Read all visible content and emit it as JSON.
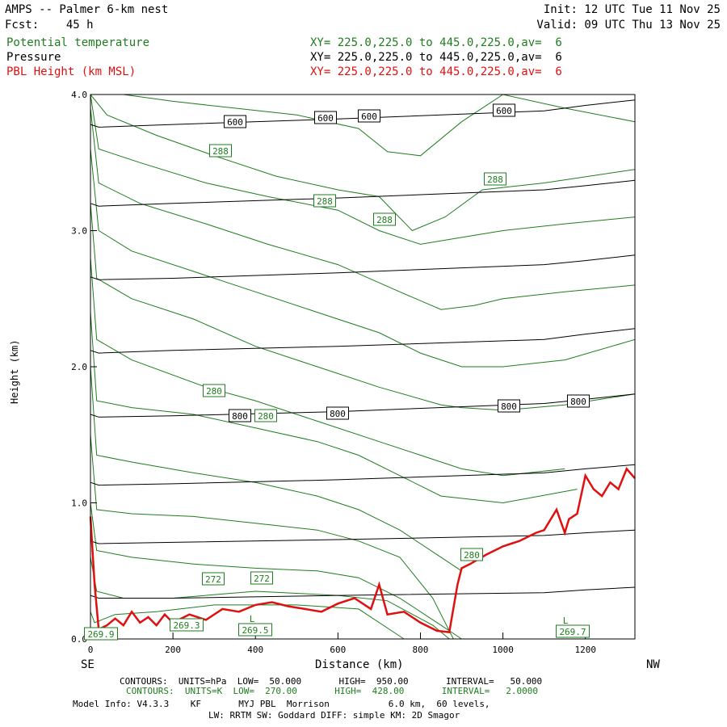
{
  "header": {
    "title": "AMPS -- Palmer 6-km nest",
    "forecast": "Fcst:    45 h",
    "init": "Init: 12 UTC Tue 11 Nov 25",
    "valid": "Valid: 09 UTC Thu 13 Nov 25"
  },
  "legend": [
    {
      "name": "Potential temperature",
      "xy": "XY= 225.0,225.0 to 445.0,225.0,av=  6",
      "color": "#1e7d1e"
    },
    {
      "name": "Pressure",
      "xy": "XY= 225.0,225.0 to 445.0,225.0,av=  6",
      "color": "#000000"
    },
    {
      "name": "PBL Height (km MSL)",
      "xy": "XY= 225.0,225.0 to 445.0,225.0,av=  6",
      "color": "#e01010"
    }
  ],
  "footer": {
    "line1": "CONTOURS:  UNITS=hPa  LOW=  50.000       HIGH=  950.00       INTERVAL=   50.000",
    "line2": "CONTOURS:  UNITS=K  LOW=  270.00       HIGH=  428.00       INTERVAL=   2.0000",
    "line3": "Model Info: V4.3.3    KF       MYJ PBL  Morrison           6.0 km,  60 levels,",
    "line4": "LW: RRTM SW: Goddard DIFF: simple KM: 2D Smagor"
  },
  "chart_data": {
    "type": "line",
    "xlabel": "Distance (km)",
    "ylabel": "Height (km)",
    "xlim": [
      0,
      1320
    ],
    "ylim": [
      0,
      4
    ],
    "x_ticks": [
      0,
      200,
      400,
      600,
      800,
      1000,
      1200
    ],
    "y_ticks": [
      "0.0",
      "1.0",
      "2.0",
      "3.0",
      "4.0"
    ],
    "x_left_label": "SE",
    "x_right_label": "NW",
    "pressure_labels": [
      "600",
      "600",
      "600",
      "600",
      "800",
      "800",
      "800",
      "800"
    ],
    "theta_labels": [
      "288",
      "288",
      "288",
      "288",
      "280",
      "280",
      "280",
      "272",
      "272",
      "269.3",
      "269.5",
      "269.9",
      "269.7"
    ],
    "low_labels": [
      "L",
      "L"
    ],
    "series": [
      {
        "name": "PBL Height (km MSL)",
        "color": "#e01010",
        "x": [
          0,
          10,
          20,
          40,
          60,
          80,
          100,
          120,
          140,
          160,
          180,
          200,
          240,
          280,
          320,
          360,
          400,
          440,
          480,
          520,
          560,
          600,
          640,
          680,
          700,
          720,
          760,
          800,
          840,
          870,
          890,
          900,
          920,
          960,
          1000,
          1040,
          1080,
          1100,
          1130,
          1150,
          1160,
          1180,
          1200,
          1220,
          1240,
          1260,
          1280,
          1300,
          1320
        ],
        "y": [
          0.9,
          0.4,
          0.07,
          0.1,
          0.15,
          0.1,
          0.2,
          0.12,
          0.16,
          0.1,
          0.18,
          0.12,
          0.18,
          0.14,
          0.22,
          0.2,
          0.25,
          0.27,
          0.24,
          0.22,
          0.2,
          0.26,
          0.3,
          0.22,
          0.4,
          0.18,
          0.2,
          0.12,
          0.06,
          0.05,
          0.4,
          0.52,
          0.55,
          0.62,
          0.68,
          0.72,
          0.78,
          0.8,
          0.95,
          0.78,
          0.88,
          0.92,
          1.2,
          1.1,
          1.05,
          1.15,
          1.1,
          1.25,
          1.18
        ]
      },
      {
        "name": "Pressure",
        "color": "#000000",
        "levels": [
          {
            "x": [
              0,
              20,
              200,
              600,
              1100,
              1200,
              1320
            ],
            "y": [
              0.32,
              0.3,
              0.3,
              0.32,
              0.34,
              0.36,
              0.38
            ]
          },
          {
            "x": [
              0,
              20,
              200,
              600,
              1100,
              1200,
              1320
            ],
            "y": [
              0.72,
              0.7,
              0.71,
              0.73,
              0.76,
              0.78,
              0.8
            ]
          },
          {
            "x": [
              0,
              20,
              200,
              600,
              1100,
              1200,
              1320
            ],
            "y": [
              1.15,
              1.13,
              1.14,
              1.17,
              1.22,
              1.25,
              1.28
            ]
          },
          {
            "x": [
              0,
              20,
              200,
              600,
              1100,
              1200,
              1320
            ],
            "y": [
              1.65,
              1.63,
              1.64,
              1.67,
              1.73,
              1.76,
              1.8
            ]
          },
          {
            "x": [
              0,
              20,
              200,
              600,
              1100,
              1200,
              1320
            ],
            "y": [
              2.12,
              2.1,
              2.12,
              2.15,
              2.2,
              2.24,
              2.28
            ]
          },
          {
            "x": [
              0,
              20,
              200,
              600,
              1100,
              1200,
              1320
            ],
            "y": [
              2.66,
              2.64,
              2.65,
              2.69,
              2.75,
              2.78,
              2.82
            ]
          },
          {
            "x": [
              0,
              20,
              200,
              600,
              1100,
              1200,
              1320
            ],
            "y": [
              3.2,
              3.18,
              3.2,
              3.24,
              3.3,
              3.33,
              3.37
            ]
          },
          {
            "x": [
              0,
              20,
              200,
              600,
              1100,
              1200,
              1320
            ],
            "y": [
              3.78,
              3.76,
              3.78,
              3.82,
              3.88,
              3.92,
              3.96
            ]
          }
        ]
      },
      {
        "name": "Potential temperature",
        "color": "#1e7d1e",
        "levels": [
          {
            "x": [
              0,
              10,
              60,
              160,
              300,
              500,
              650,
              760
            ],
            "y": [
              0.2,
              0.12,
              0.18,
              0.2,
              0.25,
              0.25,
              0.22,
              0.0
            ]
          },
          {
            "x": [
              0,
              15,
              80,
              200,
              400,
              600,
              720,
              830,
              870
            ],
            "y": [
              0.6,
              0.35,
              0.3,
              0.3,
              0.35,
              0.32,
              0.28,
              0.1,
              0.0
            ]
          },
          {
            "x": [
              0,
              15,
              100,
              250,
              400,
              550,
              650,
              750,
              850,
              900
            ],
            "y": [
              1.0,
              0.65,
              0.6,
              0.55,
              0.52,
              0.5,
              0.45,
              0.3,
              0.1,
              0.0
            ]
          },
          {
            "x": [
              0,
              15,
              100,
              250,
              400,
              550,
              650,
              750,
              830,
              880
            ],
            "y": [
              1.5,
              0.95,
              0.92,
              0.9,
              0.85,
              0.8,
              0.72,
              0.6,
              0.3,
              0.0
            ]
          },
          {
            "x": [
              0,
              15,
              100,
              250,
              400,
              550,
              650,
              750,
              850,
              900
            ],
            "y": [
              2.0,
              1.35,
              1.3,
              1.22,
              1.15,
              1.05,
              0.95,
              0.8,
              0.6,
              0.5
            ]
          },
          {
            "x": [
              0,
              15,
              100,
              250,
              400,
              550,
              650,
              750,
              850,
              1000,
              1180
            ],
            "y": [
              2.4,
              1.75,
              1.7,
              1.65,
              1.55,
              1.45,
              1.35,
              1.2,
              1.05,
              1.0,
              1.1
            ]
          },
          {
            "x": [
              0,
              15,
              100,
              280,
              400,
              550,
              700,
              800,
              900,
              1000,
              1150
            ],
            "y": [
              2.8,
              2.2,
              2.05,
              1.85,
              1.75,
              1.6,
              1.45,
              1.35,
              1.25,
              1.2,
              1.25
            ]
          },
          {
            "x": [
              0,
              15,
              100,
              250,
              400,
              550,
              700,
              850,
              900,
              1000,
              1150,
              1320
            ],
            "y": [
              3.2,
              2.65,
              2.5,
              2.35,
              2.15,
              2.0,
              1.85,
              1.72,
              1.7,
              1.68,
              1.72,
              1.8
            ]
          },
          {
            "x": [
              0,
              20,
              100,
              250,
              400,
              550,
              700,
              800,
              900,
              1000,
              1150,
              1320
            ],
            "y": [
              3.6,
              3.0,
              2.85,
              2.7,
              2.55,
              2.4,
              2.25,
              2.1,
              2.0,
              2.0,
              2.05,
              2.2
            ]
          },
          {
            "x": [
              0,
              20,
              120,
              280,
              430,
              600,
              750,
              850,
              930,
              1000,
              1150,
              1320
            ],
            "y": [
              3.9,
              3.35,
              3.2,
              3.05,
              2.9,
              2.75,
              2.55,
              2.42,
              2.45,
              2.5,
              2.55,
              2.6
            ]
          },
          {
            "x": [
              0,
              20,
              120,
              280,
              430,
              600,
              700,
              800,
              900,
              1000,
              1150,
              1320
            ],
            "y": [
              4.0,
              3.6,
              3.5,
              3.35,
              3.25,
              3.15,
              3.0,
              2.9,
              2.95,
              3.0,
              3.05,
              3.1
            ]
          },
          {
            "x": [
              0,
              40,
              160,
              300,
              450,
              600,
              700,
              780,
              860,
              950,
              1100,
              1320
            ],
            "y": [
              4.0,
              3.85,
              3.7,
              3.55,
              3.4,
              3.3,
              3.25,
              3.0,
              3.1,
              3.3,
              3.35,
              3.45
            ]
          },
          {
            "x": [
              80,
              200,
              350,
              500,
              650,
              720,
              800,
              900,
              1000,
              1150,
              1320
            ],
            "y": [
              4.0,
              3.95,
              3.9,
              3.85,
              3.75,
              3.58,
              3.55,
              3.8,
              4.0,
              3.9,
              3.8
            ]
          }
        ]
      }
    ]
  }
}
